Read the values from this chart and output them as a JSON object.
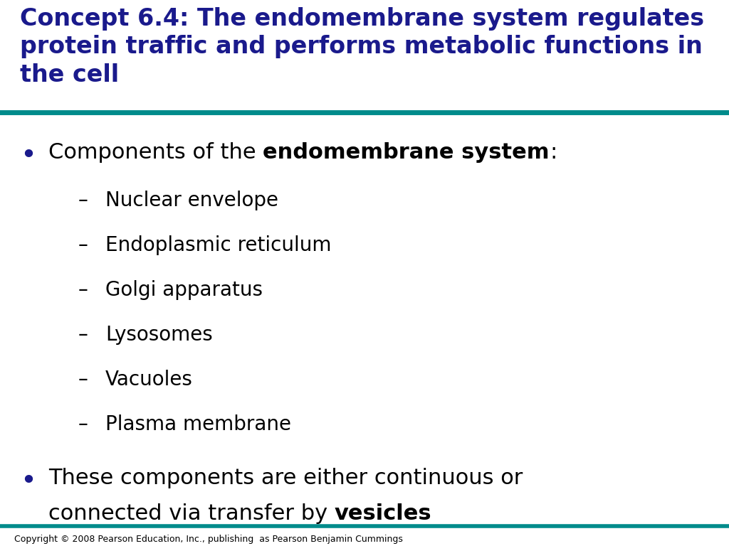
{
  "title_line1": "Concept 6.4: The endomembrane system regulates",
  "title_line2": "protein traffic and performs metabolic functions in",
  "title_line3": "the cell",
  "title_color": "#1a1a8c",
  "teal_color": "#008B8B",
  "background_color": "#ffffff",
  "bullet_color": "#1a1a8c",
  "sub_items": [
    "Nuclear envelope",
    "Endoplasmic reticulum",
    "Golgi apparatus",
    "Lysosomes",
    "Vacuoles",
    "Plasma membrane"
  ],
  "copyright_text": "Copyright © 2008 Pearson Education, Inc., publishing  as Pearson Benjamin Cummings",
  "title_fontsize": 24,
  "body_fontsize": 22,
  "sub_fontsize": 20,
  "copyright_fontsize": 9
}
